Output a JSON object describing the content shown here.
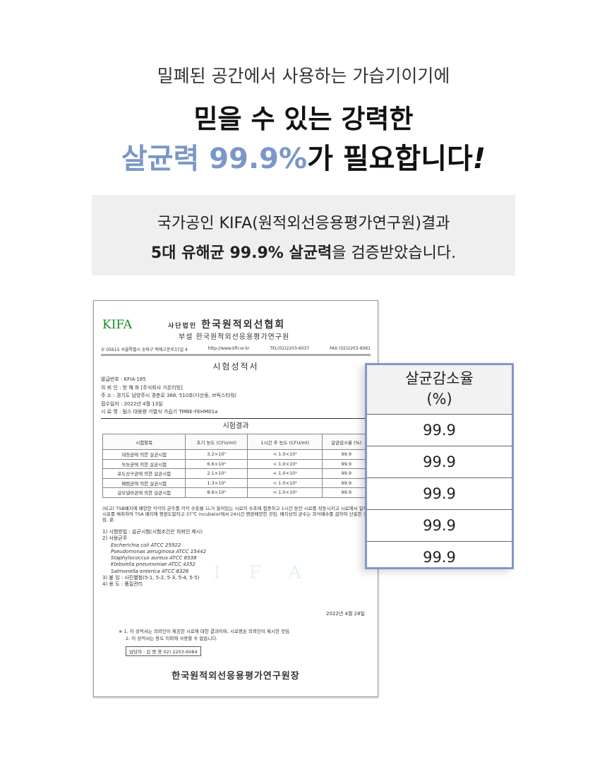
{
  "headline": {
    "line1": "밀폐된 공간에서 사용하는 가습기이기에",
    "line2": "믿을 수 있는 강력한",
    "line3_accent": "살균력 99.9%",
    "line3_rest": "가 필요합니다",
    "line3_exclaim": "!"
  },
  "info": {
    "line1": "국가공인 KIFA(원적외선응용평가연구원)결과",
    "line2_bold": "5대 유해균 99.9% 살균력",
    "line2_rest": "을 검증받았습니다."
  },
  "document": {
    "logo": "KIFA",
    "org_prefix": "사단법인",
    "org": "한국원적외선협회",
    "sub": "부설 한국원적외선응용평가연구원",
    "address": [
      "우 05615 서울특별시 송파구 백제고분로37길 4",
      "http://www.kfir.or.kr",
      "TEL(02)2203-6037",
      "FAX (02)2203-6061"
    ],
    "title": "시험성적서",
    "meta": [
      "발급번호 : KFIA-185",
      "의 뢰 인 : 방 해 화 [주식회사 가온리빙]",
      "주 소 : 경기도 남양주시 경춘로 368, 510호(다산동, 브릭스타워)",
      "접수일자 : 2022년 4월 13일",
      "시 료 명 : 텀스 대용량 가열식 가습기 TMBE-FEHM01a"
    ],
    "result_title": "시험결과",
    "headers": [
      "시험항목",
      "초기 농도 (CFU/ml)",
      "1시간 후 농도 (CFU/ml)",
      "살균감소율 (%)"
    ],
    "rows": [
      [
        "대장균에 의한 살균시험",
        "3.2×10⁵",
        "< 1.0×10¹",
        "99.9"
      ],
      [
        "녹농균에 의한 살균시험",
        "6.6×10⁵",
        "< 1.0×10¹",
        "99.9"
      ],
      [
        "포도상구균에 의한 살균시험",
        "2.1×10⁵",
        "< 1.0×10¹",
        "99.9"
      ],
      [
        "폐렴균에 의한 살균시험",
        "1.3×10⁵",
        "< 1.0×10¹",
        "99.9"
      ],
      [
        "살모넬라균에 의한 살균시험",
        "8.8×10⁵",
        "< 1.0×10¹",
        "99.9"
      ]
    ],
    "note": "(비고) TSB배지에 배양한 각각의 균주를 각각 수돗물 1L가 들어있는 시료의 수조에 접종하고 1시간 동안 시료를 작동시키고 시료에서 일부 시료를 채취하여 TSA 배지에 평판도말하고 37℃ incubator에서 24시간 평판배양한 것임. 배지상의 균수는 희석배수를 곱하여 산출한 것임. 끝.",
    "list": [
      "1) 시험방법 : 살균시험(시험조건은 의뢰인 제시)",
      "2) 사용균주"
    ],
    "strains": [
      "Escherichia coli ATCC 25922",
      "Pseudomonas aeruginosa ATCC 15442",
      "Staphylococcus aureus ATCC 6538",
      "Klebsiella pneumoniae ATCC 4352",
      "Salmonella enterica ATCC 8326"
    ],
    "list2": [
      "3) 붙 임 : 사진별첨(5-1, 5-2, 5-3, 5-4, 5-5)",
      "4) 용 도 : 품질관리"
    ],
    "watermark": "KIFA",
    "date": "2022년 4월 28일",
    "footnotes": [
      "※ 1. 이 성적서는 의뢰인이 제공한 시료에 대한 결과이며, 시료명은 의뢰인이 제시한 것임.",
      "2. 이 성적서는 용도 이외에 사용할 수 없습니다."
    ],
    "contact": "담당자 : 김 병 용 02) 2203-6084",
    "signature": "한국원적외선응용평가연구원장"
  },
  "callout": {
    "header1": "살균감소율",
    "header2": "(%)",
    "values": [
      "99.9",
      "99.9",
      "99.9",
      "99.9",
      "99.9"
    ]
  },
  "colors": {
    "accent": "#7b97c9",
    "callout_border": "#7f98c8",
    "kifa_green": "#1a8a2a",
    "info_bg": "#efefef"
  }
}
